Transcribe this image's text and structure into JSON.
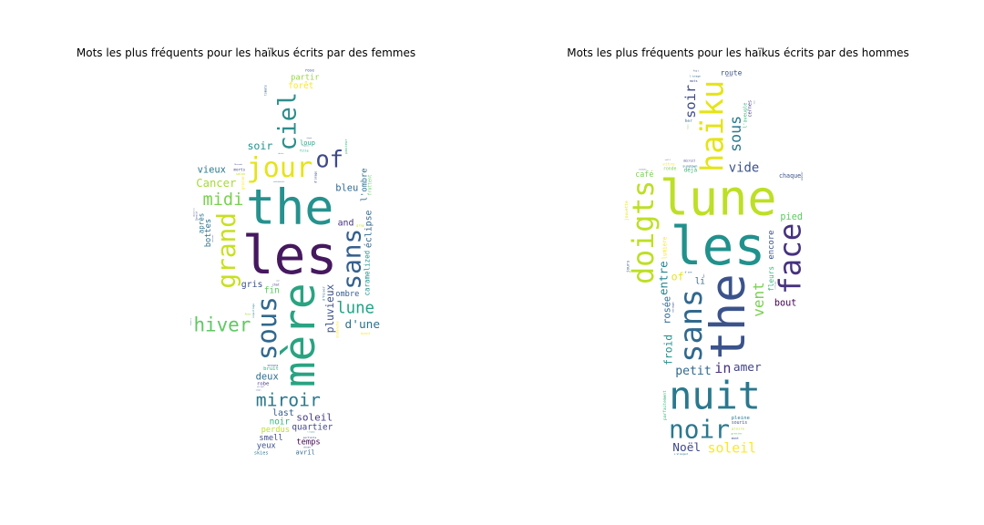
{
  "chart_data": [
    {
      "type": "wordcloud",
      "title": "Mots les plus fréquents pour les haïkus écrits par des femmes",
      "colormap": "viridis",
      "mask_shape": "woman-silhouette",
      "words": [
        {
          "text": "les",
          "weight": 1.0,
          "rotate": 0,
          "color": "#45185f"
        },
        {
          "text": "the",
          "weight": 0.92,
          "rotate": 0,
          "color": "#25928e"
        },
        {
          "text": "mère",
          "weight": 0.82,
          "rotate": 90,
          "color": "#2aa382"
        },
        {
          "text": "jour",
          "weight": 0.52,
          "rotate": 0,
          "color": "#e5e419"
        },
        {
          "text": "sous",
          "weight": 0.5,
          "rotate": 90,
          "color": "#31688e"
        },
        {
          "text": "hiver",
          "weight": 0.45,
          "rotate": 0,
          "color": "#5ec962"
        },
        {
          "text": "ciel",
          "weight": 0.46,
          "rotate": 90,
          "color": "#2e8e8c"
        },
        {
          "text": "sans",
          "weight": 0.48,
          "rotate": 90,
          "color": "#35608d"
        },
        {
          "text": "grand",
          "weight": 0.48,
          "rotate": 90,
          "color": "#c8e020"
        },
        {
          "text": "of",
          "weight": 0.44,
          "rotate": 0,
          "color": "#3e4a89"
        },
        {
          "text": "miroir",
          "weight": 0.34,
          "rotate": 0,
          "color": "#2a788e"
        },
        {
          "text": "midi",
          "weight": 0.32,
          "rotate": 0,
          "color": "#7ad151"
        },
        {
          "text": "lune",
          "weight": 0.3,
          "rotate": 0,
          "color": "#20a486"
        },
        {
          "text": "pluvieux",
          "weight": 0.24,
          "rotate": 90,
          "color": "#3b528b"
        },
        {
          "text": "d'une",
          "weight": 0.22,
          "rotate": 0,
          "color": "#2c728e"
        },
        {
          "text": "Cancer",
          "weight": 0.21,
          "rotate": 0,
          "color": "#a5db36"
        },
        {
          "text": "soir",
          "weight": 0.2,
          "rotate": 0,
          "color": "#21918c"
        },
        {
          "text": "soleil",
          "weight": 0.19,
          "rotate": 0,
          "color": "#443983"
        },
        {
          "text": "bleu",
          "weight": 0.18,
          "rotate": 0,
          "color": "#31688e"
        },
        {
          "text": "deux",
          "weight": 0.18,
          "rotate": 0,
          "color": "#2e6e8e"
        },
        {
          "text": "vieux",
          "weight": 0.18,
          "rotate": 0,
          "color": "#2a788e"
        },
        {
          "text": "éclipse",
          "weight": 0.17,
          "rotate": 90,
          "color": "#31688e"
        },
        {
          "text": "gris",
          "weight": 0.17,
          "rotate": 0,
          "color": "#3b528b"
        },
        {
          "text": "last",
          "weight": 0.17,
          "rotate": 0,
          "color": "#355f8d"
        },
        {
          "text": "and",
          "weight": 0.17,
          "rotate": 0,
          "color": "#46327e"
        },
        {
          "text": "noir",
          "weight": 0.16,
          "rotate": 0,
          "color": "#35b779"
        },
        {
          "text": "fin",
          "weight": 0.16,
          "rotate": 0,
          "color": "#5ec962"
        },
        {
          "text": "forêt",
          "weight": 0.16,
          "rotate": 0,
          "color": "#fde725"
        },
        {
          "text": "ombre",
          "weight": 0.15,
          "rotate": 0,
          "color": "#365c8d"
        },
        {
          "text": "perdus",
          "weight": 0.15,
          "rotate": 0,
          "color": "#bddf26"
        },
        {
          "text": "partir",
          "weight": 0.15,
          "rotate": 0,
          "color": "#95d840"
        },
        {
          "text": "smell",
          "weight": 0.15,
          "rotate": 0,
          "color": "#3e4989"
        },
        {
          "text": "skies",
          "weight": 0.14,
          "rotate": 0,
          "color": "#2a788e"
        },
        {
          "text": "bottes",
          "weight": 0.15,
          "rotate": 90,
          "color": "#2d708e"
        },
        {
          "text": "temps",
          "weight": 0.15,
          "rotate": 0,
          "color": "#440154"
        },
        {
          "text": "yeux",
          "weight": 0.15,
          "rotate": 0,
          "color": "#3b528b"
        },
        {
          "text": "loup",
          "weight": 0.15,
          "rotate": 0,
          "color": "#21a685"
        },
        {
          "text": "avril",
          "weight": 0.15,
          "rotate": 0,
          "color": "#31688e"
        },
        {
          "text": "bruit",
          "weight": 0.15,
          "rotate": 0,
          "color": "#29af7f"
        },
        {
          "text": "robe",
          "weight": 0.15,
          "rotate": 0,
          "color": "#46337e"
        },
        {
          "text": "morts",
          "weight": 0.14,
          "rotate": 0,
          "color": "#3e4989"
        },
        {
          "text": "quartier",
          "weight": 0.16,
          "rotate": 0,
          "color": "#404688"
        },
        {
          "text": "fille",
          "weight": 0.14,
          "rotate": 0,
          "color": "#22a884"
        },
        {
          "text": "après",
          "weight": 0.13,
          "rotate": 90,
          "color": "#2d708e"
        },
        {
          "text": "frottent",
          "weight": 0.13,
          "rotate": 90,
          "color": "#5ec962"
        },
        {
          "text": "onions",
          "weight": 0.14,
          "rotate": 0,
          "color": "#31688e"
        },
        {
          "text": "salon",
          "weight": 0.14,
          "rotate": 0,
          "color": "#c8e020"
        },
        {
          "text": "d'hiver",
          "weight": 0.13,
          "rotate": 90,
          "color": "#2d708e"
        },
        {
          "text": "l'ombre",
          "weight": 0.15,
          "rotate": 90,
          "color": "#2e6f8e"
        },
        {
          "text": "caramelized",
          "weight": 0.13,
          "rotate": 90,
          "color": "#21918c"
        },
        {
          "text": "dimanche",
          "weight": 0.13,
          "rotate": 90,
          "color": "#fde725"
        },
        {
          "text": "pasteur",
          "weight": 0.13,
          "rotate": 90,
          "color": "#35b779"
        },
        {
          "text": "d'orage",
          "weight": 0.13,
          "rotate": 90,
          "color": "#3b528b"
        },
        {
          "text": "Avant",
          "weight": 0.12,
          "rotate": 0,
          "color": "#fde725"
        },
        {
          "text": "gray",
          "weight": 0.12,
          "rotate": 0,
          "color": "#bddf26"
        },
        {
          "text": "partielle",
          "weight": 0.09,
          "rotate": 0,
          "color": "#3e4989"
        },
        {
          "text": "cathédrale",
          "weight": 0.09,
          "rotate": 0,
          "color": "#2a788e"
        },
        {
          "text": "coquillage",
          "weight": 0.09,
          "rotate": 90,
          "color": "#26828e"
        },
        {
          "text": "tomate",
          "weight": 0.09,
          "rotate": 90,
          "color": "#31688e"
        },
        {
          "text": "grosse",
          "weight": 0.11,
          "rotate": 90,
          "color": "#fde725"
        },
        {
          "text": "Rose",
          "weight": 0.08,
          "rotate": 0,
          "color": "#a5db36"
        },
        {
          "text": "rose",
          "weight": 0.09,
          "rotate": 0,
          "color": "#3b528b"
        },
        {
          "text": "chose",
          "weight": 0.08,
          "rotate": 0,
          "color": "#3b528b"
        },
        {
          "text": "chat",
          "weight": 0.09,
          "rotate": 0,
          "color": "#443983"
        },
        {
          "text": "white",
          "weight": 0.08,
          "rotate": 0,
          "color": "#2a788e"
        },
        {
          "text": "Muscade",
          "weight": 0.08,
          "rotate": 0,
          "color": "#3e4989"
        },
        {
          "text": "vitrail",
          "weight": 0.08,
          "rotate": 0,
          "color": "#404688"
        },
        {
          "text": "Donald",
          "weight": 0.08,
          "rotate": 90,
          "color": "#3b528b"
        },
        {
          "text": "tituban",
          "weight": 0.08,
          "rotate": 0,
          "color": "#2a788e"
        },
        {
          "text": "Plumeria",
          "weight": 0.08,
          "rotate": 0,
          "color": "#3e4989"
        },
        {
          "text": "disput",
          "weight": 0.08,
          "rotate": 0,
          "color": "#3e4989"
        },
        {
          "text": "congés",
          "weight": 0.07,
          "rotate": 0,
          "color": "#3e4989"
        },
        {
          "text": "girafe",
          "weight": 0.07,
          "rotate": 0,
          "color": "#22a884"
        },
        {
          "text": "l'impossible",
          "weight": 0.06,
          "rotate": 0,
          "color": "#fde725"
        },
        {
          "text": "cour",
          "weight": 0.07,
          "rotate": 0,
          "color": "#3e4989"
        },
        {
          "text": "sifflement",
          "weight": 0.07,
          "rotate": 0,
          "color": "#3e4989"
        },
        {
          "text": "désert",
          "weight": 0.07,
          "rotate": 0,
          "color": "#a5db36"
        },
        {
          "text": "cheveux",
          "weight": 0.07,
          "rotate": 90,
          "color": "#3b528b"
        },
        {
          "text": "abeilles",
          "weight": 0.07,
          "rotate": 90,
          "color": "#3e4989"
        },
        {
          "text": "fenêtre",
          "weight": 0.07,
          "rotate": 90,
          "color": "#2a788e"
        }
      ]
    },
    {
      "type": "wordcloud",
      "title": "Mots les plus fréquents pour les haïkus écrits par des hommes",
      "colormap": "viridis",
      "mask_shape": "man-silhouette",
      "words": [
        {
          "text": "les",
          "weight": 1.0,
          "rotate": 0,
          "color": "#21918c"
        },
        {
          "text": "lune",
          "weight": 0.92,
          "rotate": 0,
          "color": "#bddf26"
        },
        {
          "text": "the",
          "weight": 0.9,
          "rotate": 90,
          "color": "#3b528b"
        },
        {
          "text": "nuit",
          "weight": 0.72,
          "rotate": 0,
          "color": "#2a788e"
        },
        {
          "text": "doigts",
          "weight": 0.68,
          "rotate": 90,
          "color": "#bddf26"
        },
        {
          "text": "sans",
          "weight": 0.58,
          "rotate": 90,
          "color": "#31688e"
        },
        {
          "text": "haïku",
          "weight": 0.58,
          "rotate": 90,
          "color": "#e5e419"
        },
        {
          "text": "face",
          "weight": 0.56,
          "rotate": 90,
          "color": "#46327e"
        },
        {
          "text": "sous",
          "weight": 0.56,
          "rotate": 90,
          "color": "#2a788e"
        },
        {
          "text": "vent",
          "weight": 0.54,
          "rotate": 90,
          "color": "#7ad151"
        },
        {
          "text": "soir",
          "weight": 0.52,
          "rotate": 90,
          "color": "#3e4989"
        },
        {
          "text": "noir",
          "weight": 0.48,
          "rotate": 0,
          "color": "#2a788e"
        },
        {
          "text": "petit",
          "weight": 0.44,
          "rotate": 0,
          "color": "#31688e"
        },
        {
          "text": "entre",
          "weight": 0.42,
          "rotate": 90,
          "color": "#26828e"
        },
        {
          "text": "froid",
          "weight": 0.38,
          "rotate": 90,
          "color": "#21918c"
        },
        {
          "text": "soleil",
          "weight": 0.32,
          "rotate": 0,
          "color": "#fde725"
        },
        {
          "text": "vide",
          "weight": 0.3,
          "rotate": 0,
          "color": "#3b528b"
        },
        {
          "text": "encore",
          "weight": 0.3,
          "rotate": 90,
          "color": "#3b528b"
        },
        {
          "text": "fleurs",
          "weight": 0.26,
          "rotate": 90,
          "color": "#35b779"
        },
        {
          "text": "in",
          "weight": 0.26,
          "rotate": 0,
          "color": "#46327e"
        },
        {
          "text": "amer",
          "weight": 0.22,
          "rotate": 0,
          "color": "#414487"
        },
        {
          "text": "Noël",
          "weight": 0.22,
          "rotate": 0,
          "color": "#3e4989"
        },
        {
          "text": "pied",
          "weight": 0.22,
          "rotate": 0,
          "color": "#5ec962"
        },
        {
          "text": "bout",
          "weight": 0.22,
          "rotate": 0,
          "color": "#440154"
        },
        {
          "text": "chaque",
          "weight": 0.18,
          "rotate": 0,
          "color": "#3b528b"
        },
        {
          "text": "café",
          "weight": 0.18,
          "rotate": 0,
          "color": "#7ad151"
        },
        {
          "text": "of",
          "weight": 0.2,
          "rotate": 0,
          "color": "#e5e419"
        },
        {
          "text": "rosée",
          "weight": 0.22,
          "rotate": 90,
          "color": "#31688e"
        },
        {
          "text": "route",
          "weight": 0.17,
          "rotate": 0,
          "color": "#3b528b"
        },
        {
          "text": "li",
          "weight": 0.16,
          "rotate": 0,
          "color": "#31688e"
        },
        {
          "text": "pleine",
          "weight": 0.15,
          "rotate": 0,
          "color": "#2a788e"
        },
        {
          "text": "lumière",
          "weight": 0.16,
          "rotate": 90,
          "color": "#fde725"
        },
        {
          "text": "l'aveugle",
          "weight": 0.14,
          "rotate": 90,
          "color": "#35b779"
        },
        {
          "text": "cernes",
          "weight": 0.14,
          "rotate": 90,
          "color": "#443983"
        },
        {
          "text": "souris",
          "weight": 0.13,
          "rotate": 0,
          "color": "#3b528b"
        },
        {
          "text": "déjà",
          "weight": 0.13,
          "rotate": 0,
          "color": "#35b779"
        },
        {
          "text": "sundown",
          "weight": 0.13,
          "rotate": 0,
          "color": "#2a788e"
        },
        {
          "text": "ronde",
          "weight": 0.13,
          "rotate": 0,
          "color": "#7ad151"
        },
        {
          "text": "décroît",
          "weight": 0.13,
          "rotate": 0,
          "color": "#443983"
        },
        {
          "text": "gloire",
          "weight": 0.13,
          "rotate": 0,
          "color": "#bddf26"
        },
        {
          "text": "d'une",
          "weight": 0.11,
          "rotate": 0,
          "color": "#31688e"
        },
        {
          "text": "vitre",
          "weight": 0.12,
          "rotate": 0,
          "color": "#fde725"
        },
        {
          "text": "jours",
          "weight": 0.12,
          "rotate": 90,
          "color": "#35608d"
        },
        {
          "text": "s'allongent",
          "weight": 0.12,
          "rotate": 0,
          "color": "#2a788e"
        },
        {
          "text": "l'orage",
          "weight": 0.12,
          "rotate": 0,
          "color": "#31688e"
        },
        {
          "text": "jouvette",
          "weight": 0.12,
          "rotate": 90,
          "color": "#e5e419"
        },
        {
          "text": "parfaitement",
          "weight": 0.12,
          "rotate": 90,
          "color": "#35b779"
        },
        {
          "text": "grenier",
          "weight": 0.12,
          "rotate": 0,
          "color": "#5ec962"
        },
        {
          "text": "her",
          "weight": 0.12,
          "rotate": 0,
          "color": "#31688e"
        },
        {
          "text": "mont",
          "weight": 0.11,
          "rotate": 0,
          "color": "#3e4989"
        },
        {
          "text": "still",
          "weight": 0.11,
          "rotate": 0,
          "color": "#3e4989"
        },
        {
          "text": "nouvelle",
          "weight": 0.11,
          "rotate": 0,
          "color": "#3e4989"
        },
        {
          "text": "mots",
          "weight": 0.12,
          "rotate": 0,
          "color": "#3b528b"
        },
        {
          "text": "fuji",
          "weight": 0.11,
          "rotate": 0,
          "color": "#3b528b"
        },
        {
          "text": "Buée",
          "weight": 0.11,
          "rotate": 0,
          "color": "#3e4989"
        },
        {
          "text": "seringue",
          "weight": 0.1,
          "rotate": 90,
          "color": "#3b528b"
        },
        {
          "text": "couloir",
          "weight": 0.1,
          "rotate": 90,
          "color": "#3e4989"
        },
        {
          "text": "fenêtre",
          "weight": 0.1,
          "rotate": 0,
          "color": "#3e4989"
        },
        {
          "text": "hearth",
          "weight": 0.1,
          "rotate": 90,
          "color": "#5ec962"
        },
        {
          "text": "lunes",
          "weight": 0.1,
          "rotate": 90,
          "color": "#7ad151"
        },
        {
          "text": "s'éloigne",
          "weight": 0.09,
          "rotate": 90,
          "color": "#3e4989"
        },
        {
          "text": "rosary",
          "weight": 0.1,
          "rotate": 90,
          "color": "#3b528b"
        },
        {
          "text": "mondiale",
          "weight": 0.09,
          "rotate": 0,
          "color": "#3e4989"
        },
        {
          "text": "chat",
          "weight": 0.08,
          "rotate": 90,
          "color": "#2a788e"
        },
        {
          "text": "gare",
          "weight": 0.09,
          "rotate": 90,
          "color": "#3b528b"
        },
        {
          "text": "poussiérer",
          "weight": 0.08,
          "rotate": 90,
          "color": "#2a788e"
        },
        {
          "text": "quartier",
          "weight": 0.08,
          "rotate": 0,
          "color": "#3e4989"
        },
        {
          "text": "mati",
          "weight": 0.09,
          "rotate": 0,
          "color": "#3b528b"
        },
        {
          "text": "fifteen",
          "weight": 0.07,
          "rotate": 0,
          "color": "#3b528b"
        },
        {
          "text": "tunnel",
          "weight": 0.07,
          "rotate": 90,
          "color": "#e5e419"
        },
        {
          "text": "ciel",
          "weight": 0.07,
          "rotate": 0,
          "color": "#3e4989"
        },
        {
          "text": "vitrail",
          "weight": 0.07,
          "rotate": 90,
          "color": "#3e4989"
        }
      ]
    }
  ]
}
